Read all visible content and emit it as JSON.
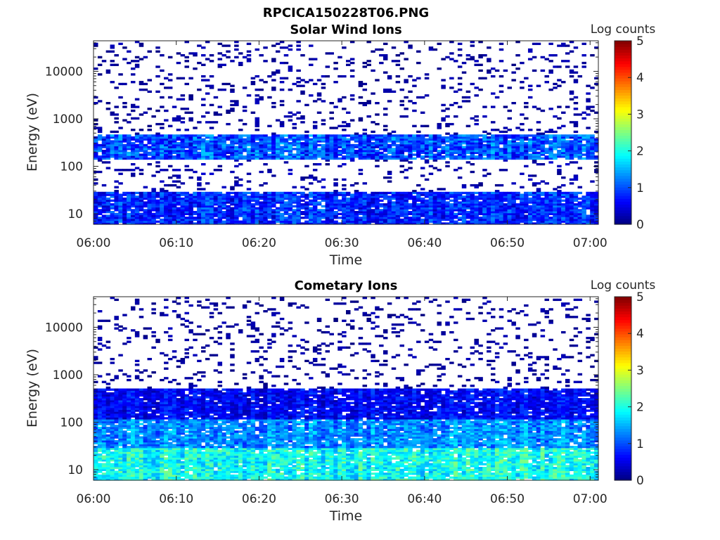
{
  "figure": {
    "title": "RPCICA150228T06.PNG"
  },
  "chart_data": [
    {
      "type": "heatmap",
      "title": "Solar Wind Ions",
      "xlabel": "Time",
      "ylabel": "Energy (eV)",
      "x_ticks": [
        "06:00",
        "06:10",
        "06:20",
        "06:30",
        "06:40",
        "06:50",
        "07:00"
      ],
      "x_range": [
        "06:00",
        "07:01"
      ],
      "y_scale": "log",
      "y_ticks": [
        10,
        100,
        1000,
        10000
      ],
      "y_tick_labels": [
        "10",
        "100",
        "1000",
        "10000"
      ],
      "y_range": [
        6,
        44000
      ],
      "colorbar": {
        "label": "Log counts",
        "range": [
          0,
          5
        ],
        "ticks": [
          "0",
          "1",
          "2",
          "3",
          "4",
          "5"
        ],
        "colormap": "jet"
      },
      "bands": [
        {
          "energy_range_eV": [
            6,
            30
          ],
          "log_counts_range": [
            0.3,
            1.3
          ]
        },
        {
          "energy_range_eV": [
            30,
            140
          ],
          "log_counts_range": [
            0,
            0.4
          ],
          "fill": "sparse"
        },
        {
          "energy_range_eV": [
            140,
            480
          ],
          "log_counts_range": [
            0.4,
            1.6
          ]
        },
        {
          "energy_range_eV": [
            480,
            44000
          ],
          "log_counts_range": [
            0,
            0.3
          ],
          "fill": "sparse"
        }
      ]
    },
    {
      "type": "heatmap",
      "title": "Cometary Ions",
      "xlabel": "Time",
      "ylabel": "Energy (eV)",
      "x_ticks": [
        "06:00",
        "06:10",
        "06:20",
        "06:30",
        "06:40",
        "06:50",
        "07:00"
      ],
      "x_range": [
        "06:00",
        "07:01"
      ],
      "y_scale": "log",
      "y_ticks": [
        10,
        100,
        1000,
        10000
      ],
      "y_tick_labels": [
        "10",
        "100",
        "1000",
        "10000"
      ],
      "y_range": [
        6,
        44000
      ],
      "colorbar": {
        "label": "Log counts",
        "range": [
          0,
          5
        ],
        "ticks": [
          "0",
          "1",
          "2",
          "3",
          "4",
          "5"
        ],
        "colormap": "jet"
      },
      "bands": [
        {
          "energy_range_eV": [
            6,
            30
          ],
          "log_counts_range": [
            1.4,
            2.5
          ]
        },
        {
          "energy_range_eV": [
            30,
            120
          ],
          "log_counts_range": [
            0.8,
            1.8
          ]
        },
        {
          "energy_range_eV": [
            120,
            500
          ],
          "log_counts_range": [
            0.2,
            1.0
          ]
        },
        {
          "energy_range_eV": [
            500,
            44000
          ],
          "log_counts_range": [
            0,
            0.3
          ],
          "fill": "sparse"
        }
      ]
    }
  ]
}
